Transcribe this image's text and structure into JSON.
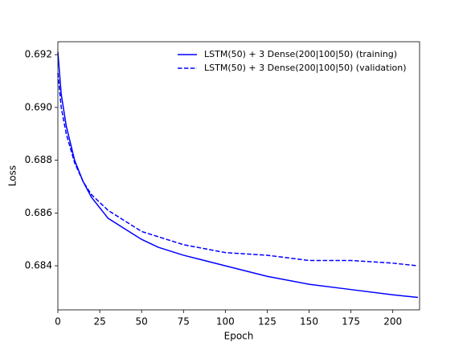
{
  "chart_data": {
    "type": "line",
    "xlabel": "Epoch",
    "ylabel": "Loss",
    "x": [
      0,
      2,
      5,
      10,
      15,
      20,
      25,
      30,
      40,
      50,
      60,
      75,
      100,
      125,
      150,
      175,
      200,
      215
    ],
    "series": [
      {
        "name": "LSTM(50) + 3 Dense(200|100|50) (training)",
        "color": "#0000ff",
        "style": "solid",
        "values": [
          0.6921,
          0.6905,
          0.6893,
          0.688,
          0.6872,
          0.6866,
          0.6862,
          0.6858,
          0.6854,
          0.685,
          0.6847,
          0.6844,
          0.684,
          0.6836,
          0.6833,
          0.6831,
          0.6829,
          0.6828
        ]
      },
      {
        "name": "LSTM(50) + 3 Dense(200|100|50) (validation)",
        "color": "#0000ff",
        "style": "dashed",
        "values": [
          0.6913,
          0.69,
          0.689,
          0.6879,
          0.6872,
          0.6867,
          0.6864,
          0.6861,
          0.6857,
          0.6853,
          0.6851,
          0.6848,
          0.6845,
          0.6844,
          0.6842,
          0.6842,
          0.6841,
          0.684
        ]
      }
    ],
    "xlim": [
      0,
      216
    ],
    "ylim": [
      0.68233,
      0.69249
    ],
    "xticks": [
      0,
      25,
      50,
      75,
      100,
      125,
      150,
      175,
      200
    ],
    "yticks": [
      0.684,
      0.686,
      0.688,
      {
        "value": 0.69,
        "label": "0.690"
      },
      0.692
    ],
    "legend": "upper right"
  }
}
